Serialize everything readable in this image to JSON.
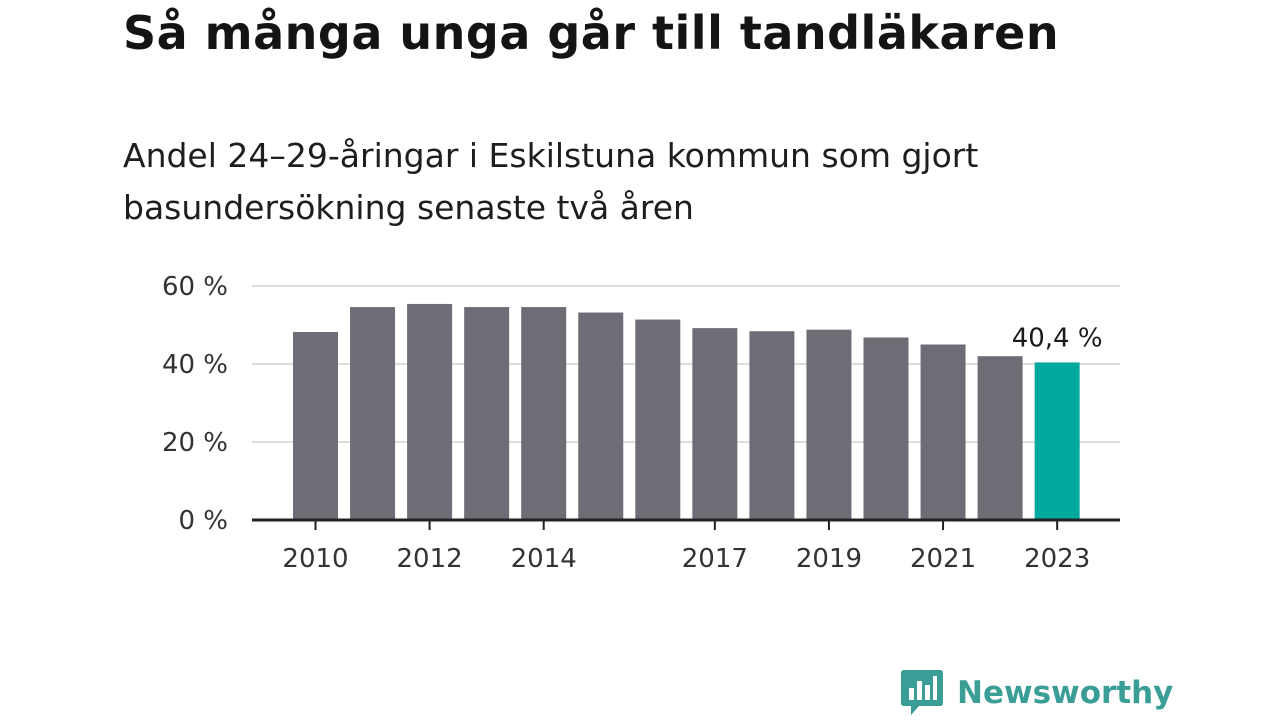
{
  "title": "Så många unga går till tandläkaren",
  "subtitle": "Andel 24–29-åringar i Eskilstuna kommun som gjort basundersökning senaste två åren",
  "logo": {
    "text": "Newsworthy",
    "icon": "bar-chart-speech-bubble-icon",
    "color": "#3b9e96"
  },
  "colors": {
    "bar": "#6e6d75",
    "highlight": "#00a99d",
    "grid": "#dddddd",
    "axis": "#222222"
  },
  "chart_data": {
    "type": "bar",
    "title": "Så många unga går till tandläkaren",
    "subtitle": "Andel 24–29-åringar i Eskilstuna kommun som gjort basundersökning senaste två åren",
    "categories": [
      "2010",
      "2011",
      "2012",
      "2013",
      "2014",
      "2015",
      "2016",
      "2017",
      "2018",
      "2019",
      "2020",
      "2021",
      "2022",
      "2023"
    ],
    "values": [
      48.2,
      54.6,
      55.4,
      54.6,
      54.6,
      53.2,
      51.4,
      49.2,
      48.4,
      48.8,
      46.8,
      45.0,
      42.0,
      40.4
    ],
    "x_tick_labels": [
      "2010",
      "2012",
      "2014",
      "2017",
      "2019",
      "2021",
      "2023"
    ],
    "y_ticks": [
      0,
      20,
      40,
      60
    ],
    "y_tick_labels": [
      "0 %",
      "20 %",
      "40 %",
      "60 %"
    ],
    "ylim": [
      0,
      60
    ],
    "grid": true,
    "highlight_category": "2023",
    "data_label": {
      "category": "2023",
      "text": "40,4 %"
    },
    "xlabel": "",
    "ylabel": ""
  }
}
